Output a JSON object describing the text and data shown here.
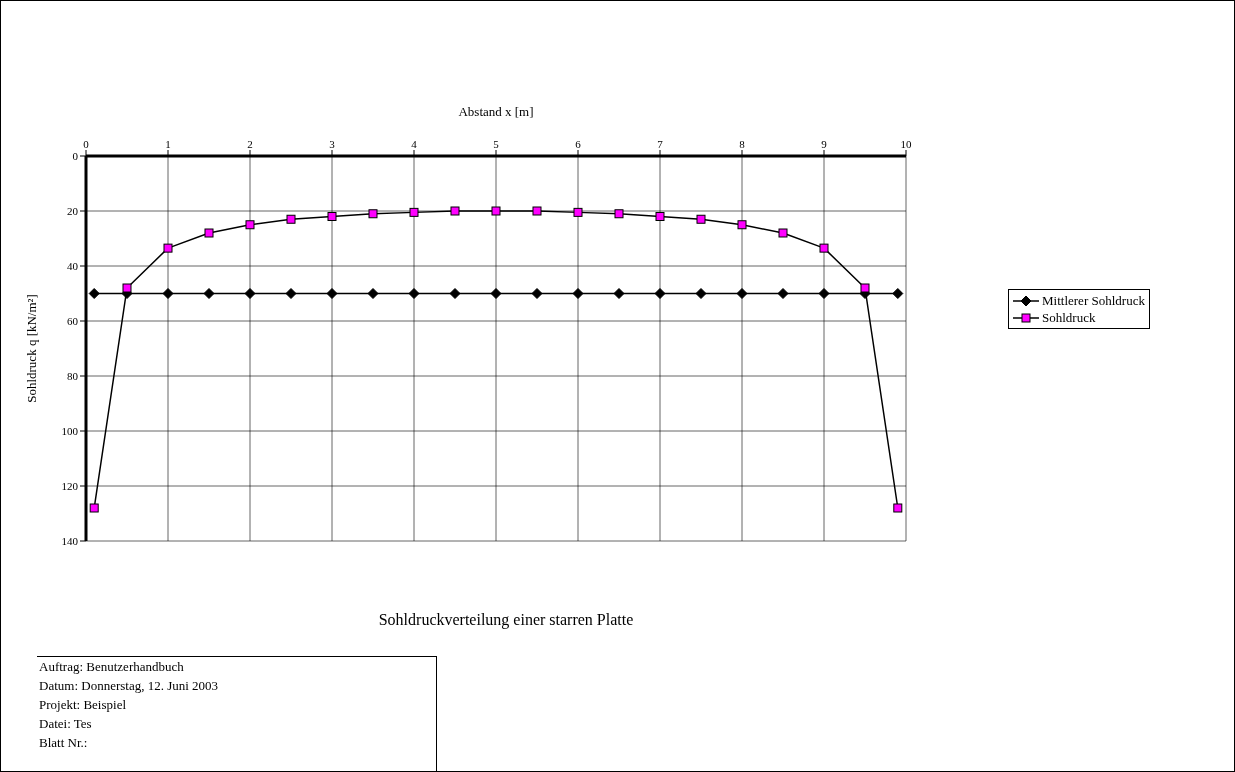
{
  "chart_data": {
    "type": "line",
    "title": "Sohldruckverteilung einer starren Platte",
    "xlabel": "Abstand x [m]",
    "ylabel": "Sohldruck q [kN/m²]",
    "xlim": [
      0,
      10
    ],
    "xticks": [
      0,
      1,
      2,
      3,
      4,
      5,
      6,
      7,
      8,
      9,
      10
    ],
    "ylim": [
      140,
      0
    ],
    "yticks": [
      0,
      20,
      40,
      60,
      80,
      100,
      120,
      140
    ],
    "grid": true,
    "legend": "right",
    "series": [
      {
        "name": "Mittlerer Sohldruck",
        "color": "#000000",
        "marker": "diamond",
        "x": [
          0.1,
          0.5,
          1,
          1.5,
          2,
          2.5,
          3,
          3.5,
          4,
          4.5,
          5,
          5.5,
          6,
          6.5,
          7,
          7.5,
          8,
          8.5,
          9,
          9.5,
          9.9
        ],
        "values": [
          50,
          50,
          50,
          50,
          50,
          50,
          50,
          50,
          50,
          50,
          50,
          50,
          50,
          50,
          50,
          50,
          50,
          50,
          50,
          50,
          50
        ]
      },
      {
        "name": "Sohldruck",
        "color": "#ff00ff",
        "marker": "square",
        "x": [
          0.1,
          0.5,
          1,
          1.5,
          2,
          2.5,
          3,
          3.5,
          4,
          4.5,
          5,
          5.5,
          6,
          6.5,
          7,
          7.5,
          8,
          8.5,
          9,
          9.5,
          9.9
        ],
        "values": [
          128,
          48,
          33.5,
          28,
          25,
          23,
          22,
          21,
          20.5,
          20,
          20,
          20,
          20.5,
          21,
          22,
          23,
          25,
          28,
          33.5,
          48,
          128
        ]
      }
    ],
    "annotations": [
      "Auftrag: Benutzerhandbuch",
      "Datum: Donnerstag, 12. Juni 2003",
      "Projekt: Beispiel",
      "Datei: Tes",
      "Blatt Nr.:"
    ]
  }
}
